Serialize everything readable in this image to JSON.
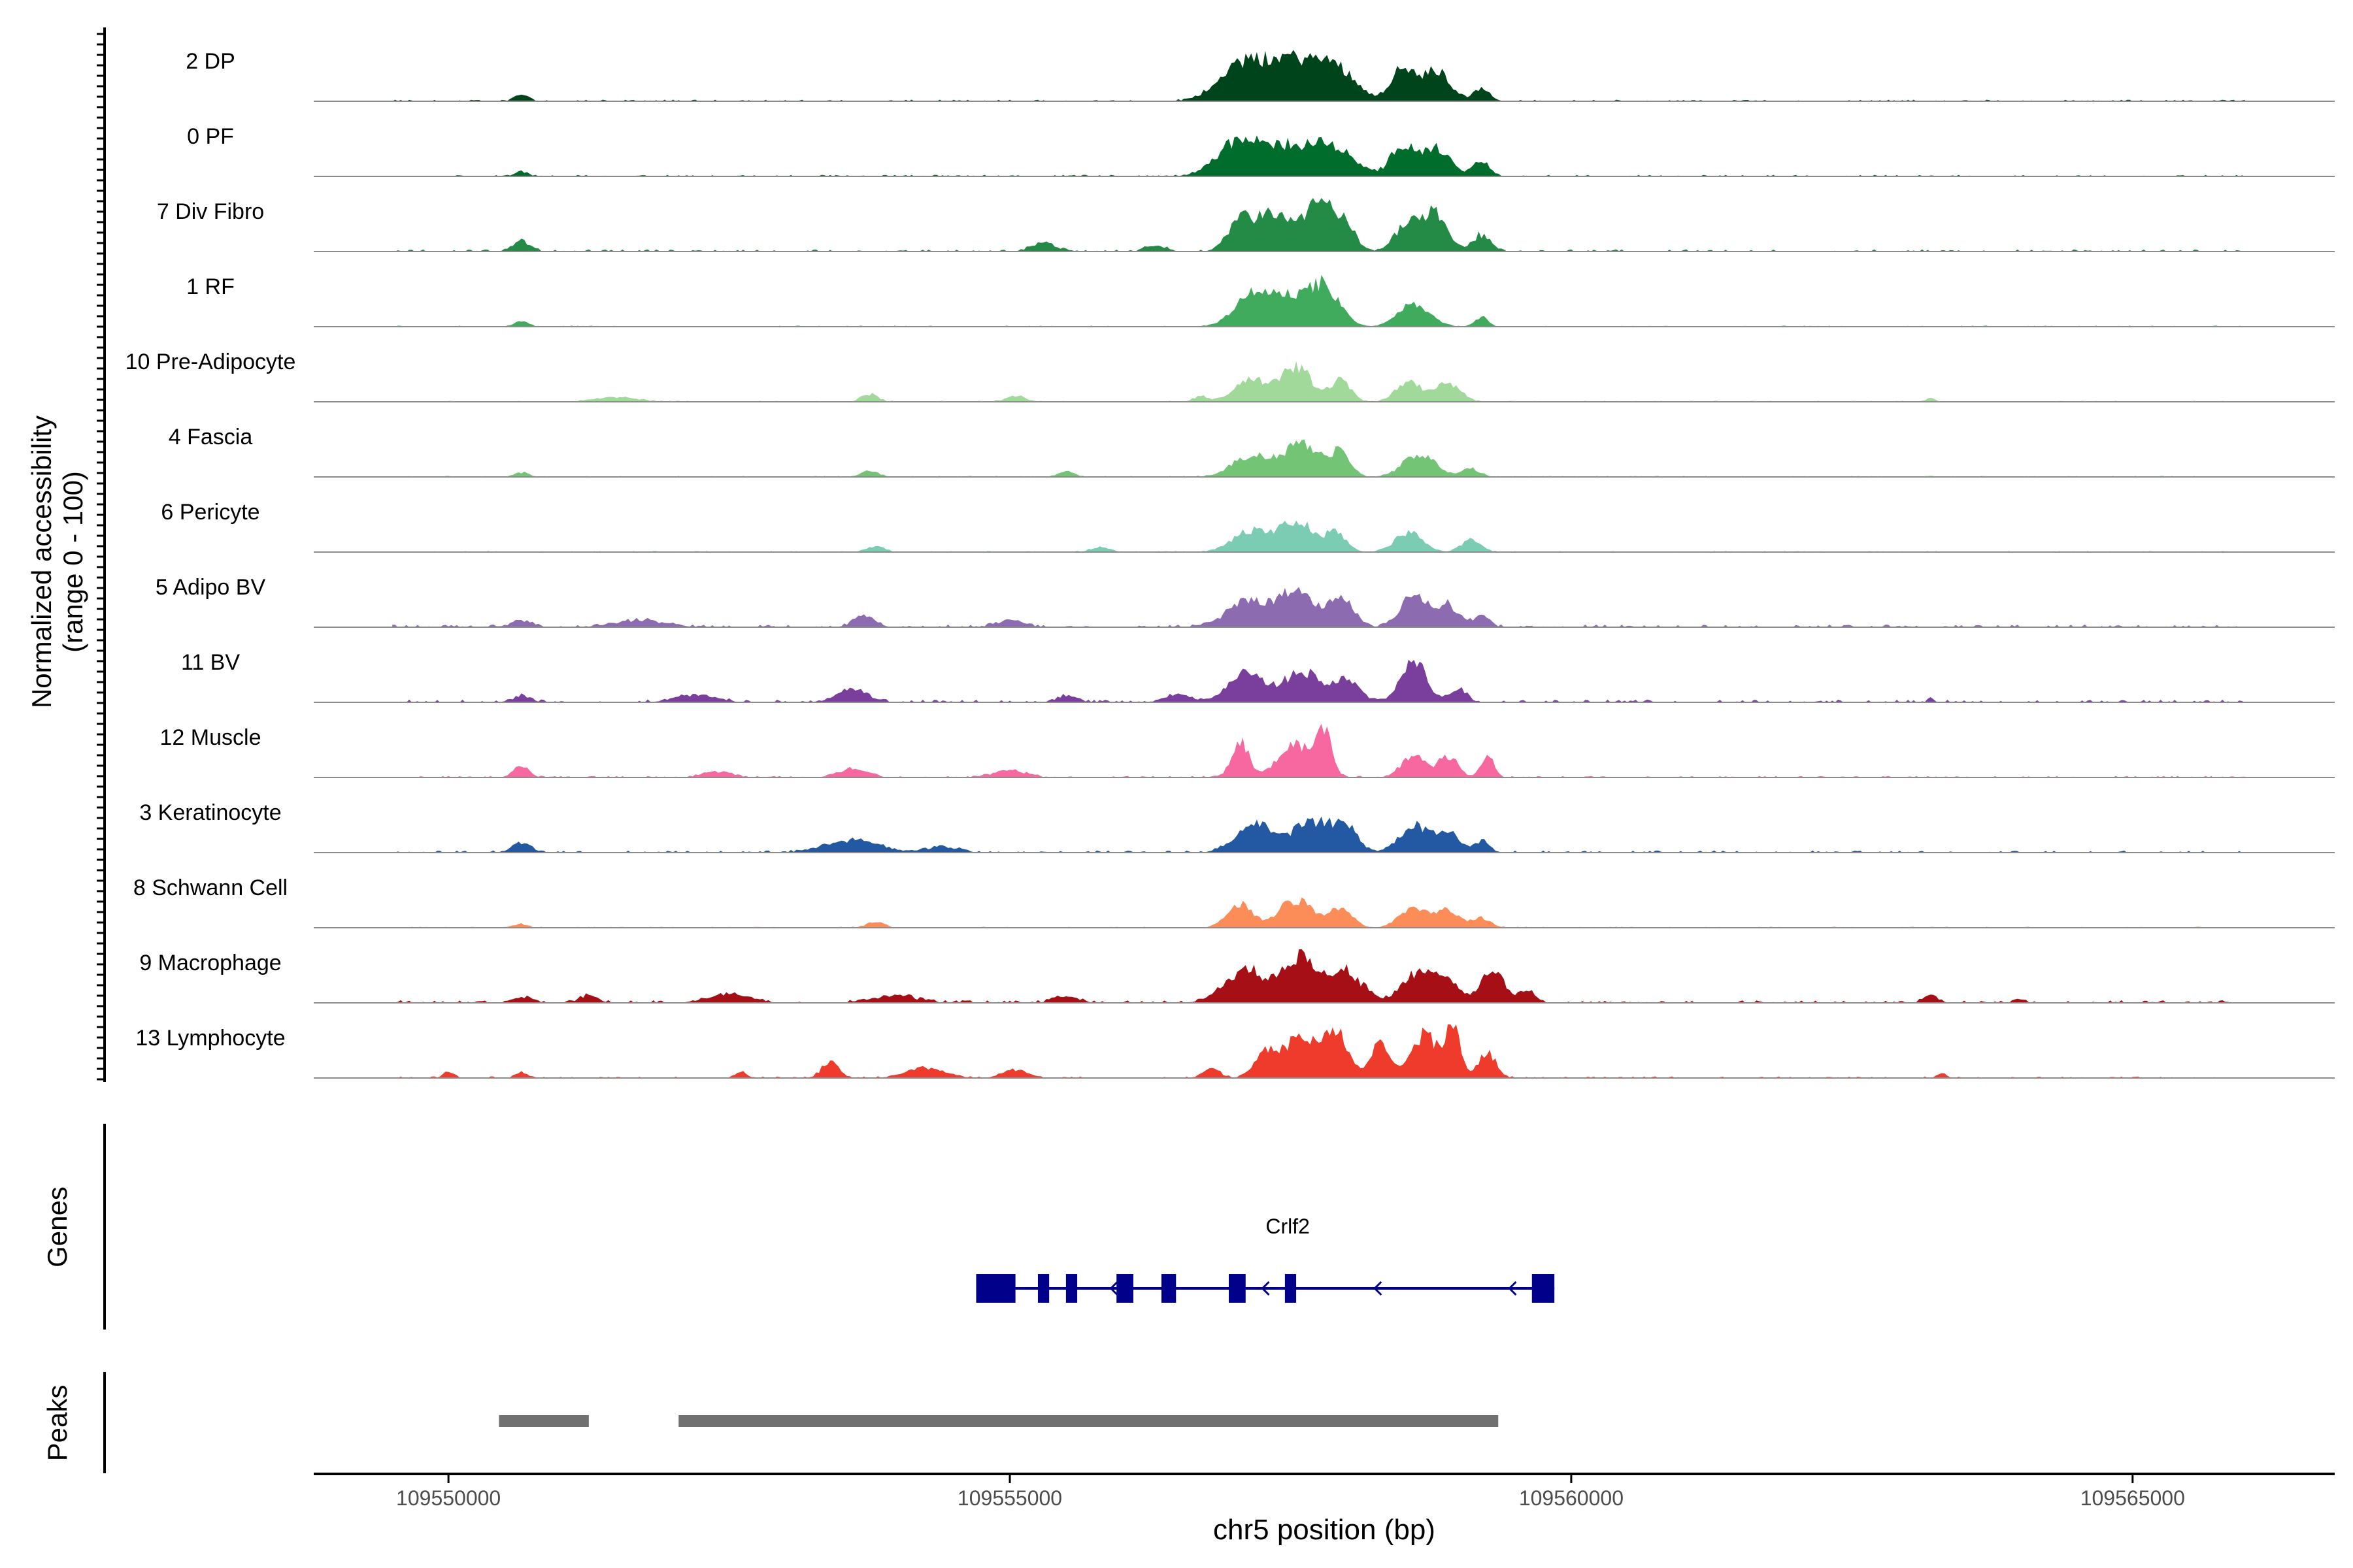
{
  "chart_data": {
    "type": "area",
    "title": "",
    "ylabel": "Normalized accessibility",
    "ylabel_range": "(range 0 - 100)",
    "xlabel": "chr5 position (bp)",
    "xlim": [
      109548800,
      109566800
    ],
    "ylim": [
      0,
      100
    ],
    "x_ticks": [
      109550000,
      109555000,
      109560000,
      109565000
    ],
    "x_tick_labels": [
      "109550000",
      "109555000",
      "109560000",
      "109565000"
    ],
    "grid": false,
    "legend": "none",
    "tracks": [
      {
        "name": "2 DP",
        "color": "#00441B"
      },
      {
        "name": "0 PF",
        "color": "#006D2C"
      },
      {
        "name": "7 Div Fibro",
        "color": "#238B45"
      },
      {
        "name": "1 RF",
        "color": "#41AB5D"
      },
      {
        "name": "10 Pre-Adipocyte",
        "color": "#A1D99B"
      },
      {
        "name": "4 Fascia",
        "color": "#74C476"
      },
      {
        "name": "6 Pericyte",
        "color": "#7BCCB2"
      },
      {
        "name": "5 Adipo BV",
        "color": "#8C6BB1"
      },
      {
        "name": "11 BV",
        "color": "#7A3F9D"
      },
      {
        "name": "12 Muscle",
        "color": "#F768A1"
      },
      {
        "name": "3 Keratinocyte",
        "color": "#2359A3"
      },
      {
        "name": "8 Schwann Cell",
        "color": "#FC8D59"
      },
      {
        "name": "9 Macrophage",
        "color": "#A50F15"
      },
      {
        "name": "13 Lymphocyte",
        "color": "#EF3B2C"
      }
    ],
    "peak_features": {
      "note_units": "peak center (bp), half-width (bp), height (0-100)",
      "2 DP": {
        "base": 3,
        "peaks": [
          [
            109550650,
            80,
            12
          ],
          [
            109557450,
            380,
            78
          ],
          [
            109557000,
            250,
            48
          ],
          [
            109557900,
            250,
            52
          ],
          [
            109558500,
            150,
            58
          ],
          [
            109558800,
            170,
            55
          ],
          [
            109559200,
            100,
            22
          ]
        ]
      },
      "0 PF": {
        "base": 3,
        "peaks": [
          [
            109550650,
            80,
            8
          ],
          [
            109557450,
            380,
            56
          ],
          [
            109557000,
            250,
            50
          ],
          [
            109557900,
            250,
            42
          ],
          [
            109558500,
            150,
            58
          ],
          [
            109558800,
            170,
            50
          ],
          [
            109559200,
            100,
            28
          ]
        ]
      },
      "7 Div Fibro": {
        "base": 4,
        "peaks": [
          [
            109550650,
            110,
            18
          ],
          [
            109555300,
            150,
            14
          ],
          [
            109556300,
            120,
            10
          ],
          [
            109557050,
            150,
            55
          ],
          [
            109557350,
            200,
            70
          ],
          [
            109557750,
            180,
            95
          ],
          [
            109558000,
            120,
            42
          ],
          [
            109558550,
            150,
            55
          ],
          [
            109558800,
            140,
            70
          ],
          [
            109559200,
            110,
            30
          ]
        ]
      },
      "1 RF": {
        "base": 2,
        "peaks": [
          [
            109550650,
            80,
            10
          ],
          [
            109557450,
            320,
            52
          ],
          [
            109557150,
            220,
            42
          ],
          [
            109557800,
            190,
            62
          ],
          [
            109558600,
            190,
            42
          ],
          [
            109559200,
            80,
            18
          ]
        ]
      },
      "10 Pre-Adipocyte": {
        "base": 2,
        "peaks": [
          [
            109551500,
            250,
            8
          ],
          [
            109553750,
            100,
            14
          ],
          [
            109555050,
            120,
            10
          ],
          [
            109556700,
            90,
            10
          ],
          [
            109557150,
            200,
            40
          ],
          [
            109557550,
            200,
            62
          ],
          [
            109557950,
            120,
            40
          ],
          [
            109558550,
            150,
            38
          ],
          [
            109558900,
            150,
            35
          ],
          [
            109563200,
            60,
            6
          ]
        ]
      },
      "4 Fascia": {
        "base": 2,
        "peaks": [
          [
            109550650,
            90,
            8
          ],
          [
            109553750,
            110,
            10
          ],
          [
            109555500,
            100,
            10
          ],
          [
            109557150,
            230,
            38
          ],
          [
            109557600,
            230,
            60
          ],
          [
            109557950,
            120,
            42
          ],
          [
            109558650,
            200,
            42
          ],
          [
            109559100,
            110,
            15
          ]
        ]
      },
      "6 Pericyte": {
        "base": 2,
        "peaks": [
          [
            109553800,
            110,
            10
          ],
          [
            109555800,
            120,
            8
          ],
          [
            109557150,
            220,
            40
          ],
          [
            109557550,
            200,
            58
          ],
          [
            109557900,
            130,
            35
          ],
          [
            109558550,
            170,
            35
          ],
          [
            109559100,
            120,
            22
          ]
        ]
      },
      "5 Adipo BV": {
        "base": 5,
        "peaks": [
          [
            109550650,
            130,
            10
          ],
          [
            109551700,
            300,
            12
          ],
          [
            109553700,
            130,
            18
          ],
          [
            109555000,
            160,
            12
          ],
          [
            109557100,
            240,
            45
          ],
          [
            109557550,
            230,
            70
          ],
          [
            109557950,
            150,
            52
          ],
          [
            109558600,
            160,
            58
          ],
          [
            109558900,
            140,
            40
          ],
          [
            109559200,
            100,
            18
          ]
        ]
      },
      "11 BV": {
        "base": 5,
        "peaks": [
          [
            109550650,
            110,
            10
          ],
          [
            109552200,
            240,
            12
          ],
          [
            109553600,
            180,
            22
          ],
          [
            109555500,
            120,
            10
          ],
          [
            109556500,
            150,
            12
          ],
          [
            109557100,
            220,
            52
          ],
          [
            109557600,
            230,
            55
          ],
          [
            109558000,
            150,
            40
          ],
          [
            109558600,
            160,
            72
          ],
          [
            109559000,
            100,
            25
          ],
          [
            109563200,
            40,
            6
          ]
        ]
      },
      "12 Muscle": {
        "base": 3,
        "peaks": [
          [
            109550650,
            90,
            22
          ],
          [
            109552400,
            170,
            10
          ],
          [
            109553600,
            180,
            15
          ],
          [
            109555000,
            200,
            12
          ],
          [
            109557050,
            100,
            72
          ],
          [
            109557550,
            220,
            60
          ],
          [
            109557800,
            90,
            78
          ],
          [
            109558600,
            150,
            40
          ],
          [
            109558900,
            120,
            38
          ],
          [
            109559250,
            80,
            40
          ]
        ]
      },
      "3 Keratinocyte": {
        "base": 4,
        "peaks": [
          [
            109550650,
            110,
            16
          ],
          [
            109553600,
            320,
            22
          ],
          [
            109554400,
            180,
            10
          ],
          [
            109557200,
            240,
            50
          ],
          [
            109557700,
            230,
            58
          ],
          [
            109558000,
            150,
            40
          ],
          [
            109558600,
            180,
            48
          ],
          [
            109558900,
            140,
            35
          ],
          [
            109559200,
            90,
            20
          ]
        ]
      },
      "8 Schwann Cell": {
        "base": 2,
        "peaks": [
          [
            109550650,
            80,
            6
          ],
          [
            109553800,
            110,
            10
          ],
          [
            109557050,
            150,
            45
          ],
          [
            109557550,
            220,
            50
          ],
          [
            109557950,
            140,
            35
          ],
          [
            109558600,
            170,
            38
          ],
          [
            109558900,
            140,
            32
          ],
          [
            109559200,
            110,
            18
          ]
        ]
      },
      "9 Macrophage": {
        "base": 5,
        "peaks": [
          [
            109550650,
            100,
            10
          ],
          [
            109551250,
            110,
            12
          ],
          [
            109552500,
            260,
            14
          ],
          [
            109554000,
            250,
            12
          ],
          [
            109555500,
            150,
            10
          ],
          [
            109557100,
            250,
            60
          ],
          [
            109557600,
            220,
            85
          ],
          [
            109558000,
            200,
            55
          ],
          [
            109558600,
            170,
            48
          ],
          [
            109558850,
            180,
            45
          ],
          [
            109559300,
            140,
            60
          ],
          [
            109559600,
            100,
            22
          ],
          [
            109563200,
            90,
            12
          ],
          [
            109564000,
            60,
            6
          ]
        ]
      },
      "13 Lymphocyte": {
        "base": 3,
        "peaks": [
          [
            109550000,
            60,
            12
          ],
          [
            109550650,
            70,
            10
          ],
          [
            109552600,
            70,
            10
          ],
          [
            109553400,
            100,
            30
          ],
          [
            109554250,
            230,
            18
          ],
          [
            109555050,
            150,
            15
          ],
          [
            109556800,
            100,
            18
          ],
          [
            109557300,
            150,
            50
          ],
          [
            109557600,
            170,
            82
          ],
          [
            109557900,
            150,
            88
          ],
          [
            109558300,
            120,
            65
          ],
          [
            109558700,
            160,
            80
          ],
          [
            109558950,
            90,
            100
          ],
          [
            109559250,
            110,
            45
          ],
          [
            109563300,
            60,
            8
          ]
        ]
      }
    },
    "genes": [
      {
        "name": "Crlf2",
        "strand": "-",
        "start": 109554700,
        "end": 109559850,
        "exons": [
          [
            109554700,
            109555050
          ],
          [
            109555250,
            109555350
          ],
          [
            109555500,
            109555600
          ],
          [
            109555950,
            109556100
          ],
          [
            109556350,
            109556480
          ],
          [
            109556950,
            109557100
          ],
          [
            109557450,
            109557550
          ],
          [
            109559650,
            109559850
          ]
        ]
      }
    ],
    "peaks": [
      [
        109550450,
        109551250
      ],
      [
        109552050,
        109559350
      ]
    ],
    "panel_labels": {
      "genes": "Genes",
      "peaks": "Peaks"
    }
  }
}
